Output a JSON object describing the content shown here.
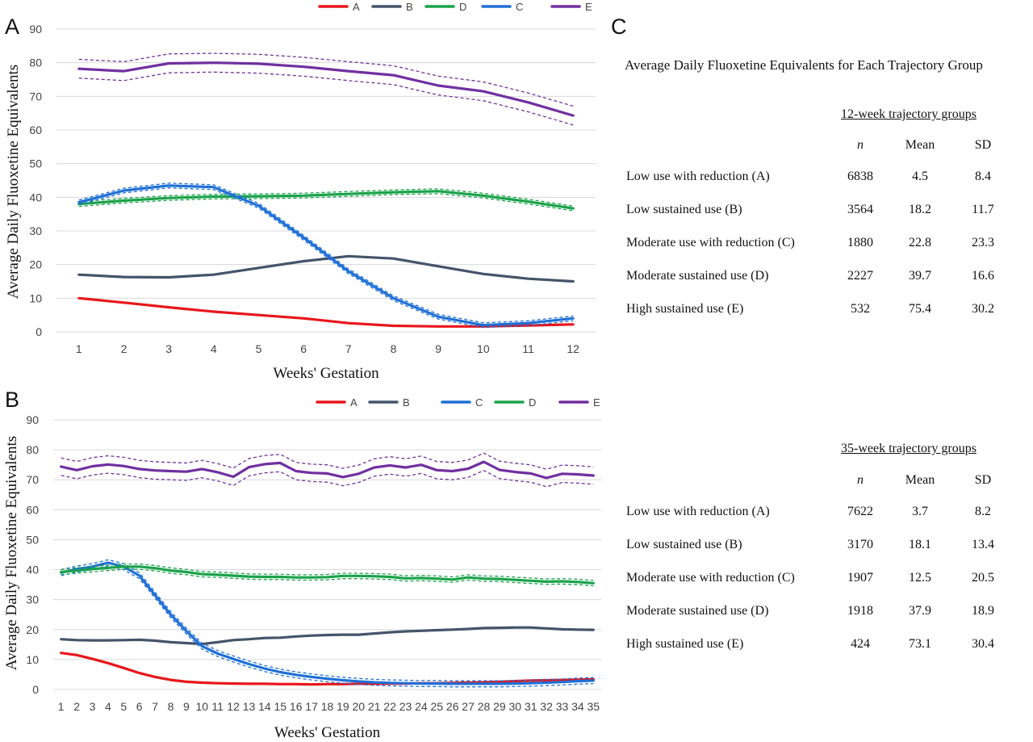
{
  "panels": {
    "a": "A",
    "b": "B",
    "c": "C"
  },
  "chart_data": [
    {
      "type": "line",
      "panel": "A",
      "xlabel": "Weeks' Gestation",
      "ylabel": "Average Daily Fluoxetine Equivalents",
      "ylim": [
        0,
        90
      ],
      "yticks": [
        0,
        10,
        20,
        30,
        40,
        50,
        60,
        70,
        80,
        90
      ],
      "x": [
        1,
        2,
        3,
        4,
        5,
        6,
        7,
        8,
        9,
        10,
        11,
        12
      ],
      "legend_position": "top",
      "legend_order": [
        "A",
        "B",
        "D",
        "C",
        "E"
      ],
      "grid": true,
      "series": [
        {
          "name": "A",
          "color": "#e8161b",
          "values": [
            10.0,
            8.7,
            7.3,
            6.0,
            5.0,
            4.0,
            2.6,
            1.8,
            1.6,
            1.6,
            1.9,
            2.2
          ]
        },
        {
          "name": "B",
          "color": "#44546a",
          "values": [
            17.0,
            16.3,
            16.2,
            17.0,
            19.0,
            21.0,
            22.5,
            21.8,
            19.5,
            17.2,
            15.8,
            15.0
          ]
        },
        {
          "name": "D",
          "color": "#1aa24a",
          "band": 0.7,
          "values": [
            38.0,
            39.0,
            39.8,
            40.2,
            40.3,
            40.5,
            41.0,
            41.5,
            41.8,
            40.5,
            38.7,
            36.7
          ]
        },
        {
          "name": "C",
          "color": "#1f6fd6",
          "band": 0.7,
          "values": [
            38.5,
            42.0,
            43.5,
            43.0,
            37.5,
            28.0,
            18.0,
            10.0,
            4.5,
            2.0,
            2.6,
            4.0
          ]
        },
        {
          "name": "E",
          "color": "#7030a0",
          "band": 2.8,
          "values": [
            78.2,
            77.5,
            79.8,
            80.0,
            79.7,
            78.8,
            77.5,
            76.3,
            73.2,
            71.5,
            68.2,
            64.3
          ]
        }
      ]
    },
    {
      "type": "line",
      "panel": "B",
      "xlabel": "Weeks' Gestation",
      "ylabel": "Average Daily Fluoxetine Equivalents",
      "ylim": [
        0,
        90
      ],
      "yticks": [
        0,
        10,
        20,
        30,
        40,
        50,
        60,
        70,
        80,
        90
      ],
      "x": [
        1,
        2,
        3,
        4,
        5,
        6,
        7,
        8,
        9,
        10,
        11,
        12,
        13,
        14,
        15,
        16,
        17,
        18,
        19,
        20,
        21,
        22,
        23,
        24,
        25,
        26,
        27,
        28,
        29,
        30,
        31,
        32,
        33,
        34,
        35
      ],
      "legend_position": "top",
      "legend_order": [
        "A",
        "B",
        "C",
        "D",
        "E"
      ],
      "grid": true,
      "series": [
        {
          "name": "A",
          "color": "#e8161b",
          "values": [
            12.2,
            11.5,
            10.2,
            8.8,
            7.2,
            5.5,
            4.2,
            3.2,
            2.6,
            2.3,
            2.1,
            2.0,
            1.9,
            1.9,
            1.8,
            1.8,
            1.7,
            1.8,
            1.8,
            1.9,
            1.9,
            2.0,
            2.0,
            2.1,
            2.1,
            2.2,
            2.3,
            2.4,
            2.6,
            2.8,
            3.0,
            3.1,
            3.2,
            3.3,
            3.4
          ]
        },
        {
          "name": "B",
          "color": "#44546a",
          "values": [
            16.8,
            16.5,
            16.4,
            16.4,
            16.5,
            16.6,
            16.3,
            15.8,
            15.5,
            15.2,
            15.8,
            16.5,
            16.8,
            17.2,
            17.3,
            17.7,
            18.0,
            18.2,
            18.3,
            18.3,
            18.7,
            19.1,
            19.4,
            19.6,
            19.8,
            20.0,
            20.2,
            20.5,
            20.6,
            20.7,
            20.7,
            20.4,
            20.1,
            20.0,
            19.9
          ]
        },
        {
          "name": "C",
          "color": "#1f6fd6",
          "band": 1.0,
          "values": [
            39.0,
            40.2,
            41.0,
            42.3,
            41.0,
            38.0,
            31.5,
            25.0,
            19.5,
            14.5,
            12.0,
            10.2,
            8.5,
            7.0,
            5.8,
            4.9,
            4.2,
            3.6,
            3.1,
            2.7,
            2.4,
            2.2,
            2.1,
            2.0,
            2.0,
            1.9,
            1.9,
            1.9,
            1.9,
            2.0,
            2.1,
            2.3,
            2.5,
            2.8,
            3.0
          ]
        },
        {
          "name": "D",
          "color": "#1aa24a",
          "band": 0.9,
          "values": [
            39.2,
            39.7,
            40.2,
            40.6,
            41.0,
            41.0,
            40.5,
            39.7,
            39.2,
            38.5,
            38.3,
            38.0,
            37.7,
            37.6,
            37.6,
            37.4,
            37.4,
            37.5,
            37.9,
            37.9,
            37.8,
            37.6,
            37.1,
            37.2,
            37.0,
            36.7,
            37.4,
            37.0,
            36.9,
            36.6,
            36.3,
            36.0,
            36.1,
            35.9,
            35.5
          ]
        },
        {
          "name": "E",
          "color": "#7030a0",
          "band": 2.9,
          "values": [
            74.4,
            73.2,
            74.5,
            75.1,
            74.6,
            73.6,
            73.1,
            72.9,
            72.7,
            73.6,
            72.5,
            71.0,
            74.2,
            75.2,
            75.6,
            72.9,
            72.3,
            72.1,
            70.9,
            72.0,
            74.1,
            74.8,
            74.1,
            75.0,
            73.2,
            72.9,
            73.7,
            76.0,
            73.3,
            72.6,
            72.1,
            70.6,
            72.0,
            71.8,
            71.4
          ]
        }
      ]
    },
    {
      "type": "table",
      "panel": "C",
      "title": "Average Daily Fluoxetine Equivalents for Each Trajectory Group",
      "column_headers": [
        "n",
        "Mean",
        "SD"
      ],
      "groups": [
        {
          "heading": "12-week trajectory groups",
          "rows": [
            {
              "label": "Low use with reduction (A)",
              "n": "6838",
              "mean": "4.5",
              "sd": "8.4"
            },
            {
              "label": "Low sustained use (B)",
              "n": "3564",
              "mean": "18.2",
              "sd": "11.7"
            },
            {
              "label": "Moderate use with reduction (C)",
              "n": "1880",
              "mean": "22.8",
              "sd": "23.3"
            },
            {
              "label": "Moderate sustained use (D)",
              "n": "2227",
              "mean": "39.7",
              "sd": "16.6"
            },
            {
              "label": "High sustained use (E)",
              "n": "532",
              "mean": "75.4",
              "sd": "30.2"
            }
          ]
        },
        {
          "heading": "35-week trajectory groups",
          "rows": [
            {
              "label": "Low use with reduction (A)",
              "n": "7622",
              "mean": "3.7",
              "sd": "8.2"
            },
            {
              "label": "Low sustained use (B)",
              "n": "3170",
              "mean": "18.1",
              "sd": "13.4"
            },
            {
              "label": "Moderate use with reduction (C)",
              "n": "1907",
              "mean": "12.5",
              "sd": "20.5"
            },
            {
              "label": "Moderate sustained use (D)",
              "n": "1918",
              "mean": "37.9",
              "sd": "18.9"
            },
            {
              "label": "High sustained use (E)",
              "n": "424",
              "mean": "73.1",
              "sd": "30.4"
            }
          ]
        }
      ]
    }
  ]
}
